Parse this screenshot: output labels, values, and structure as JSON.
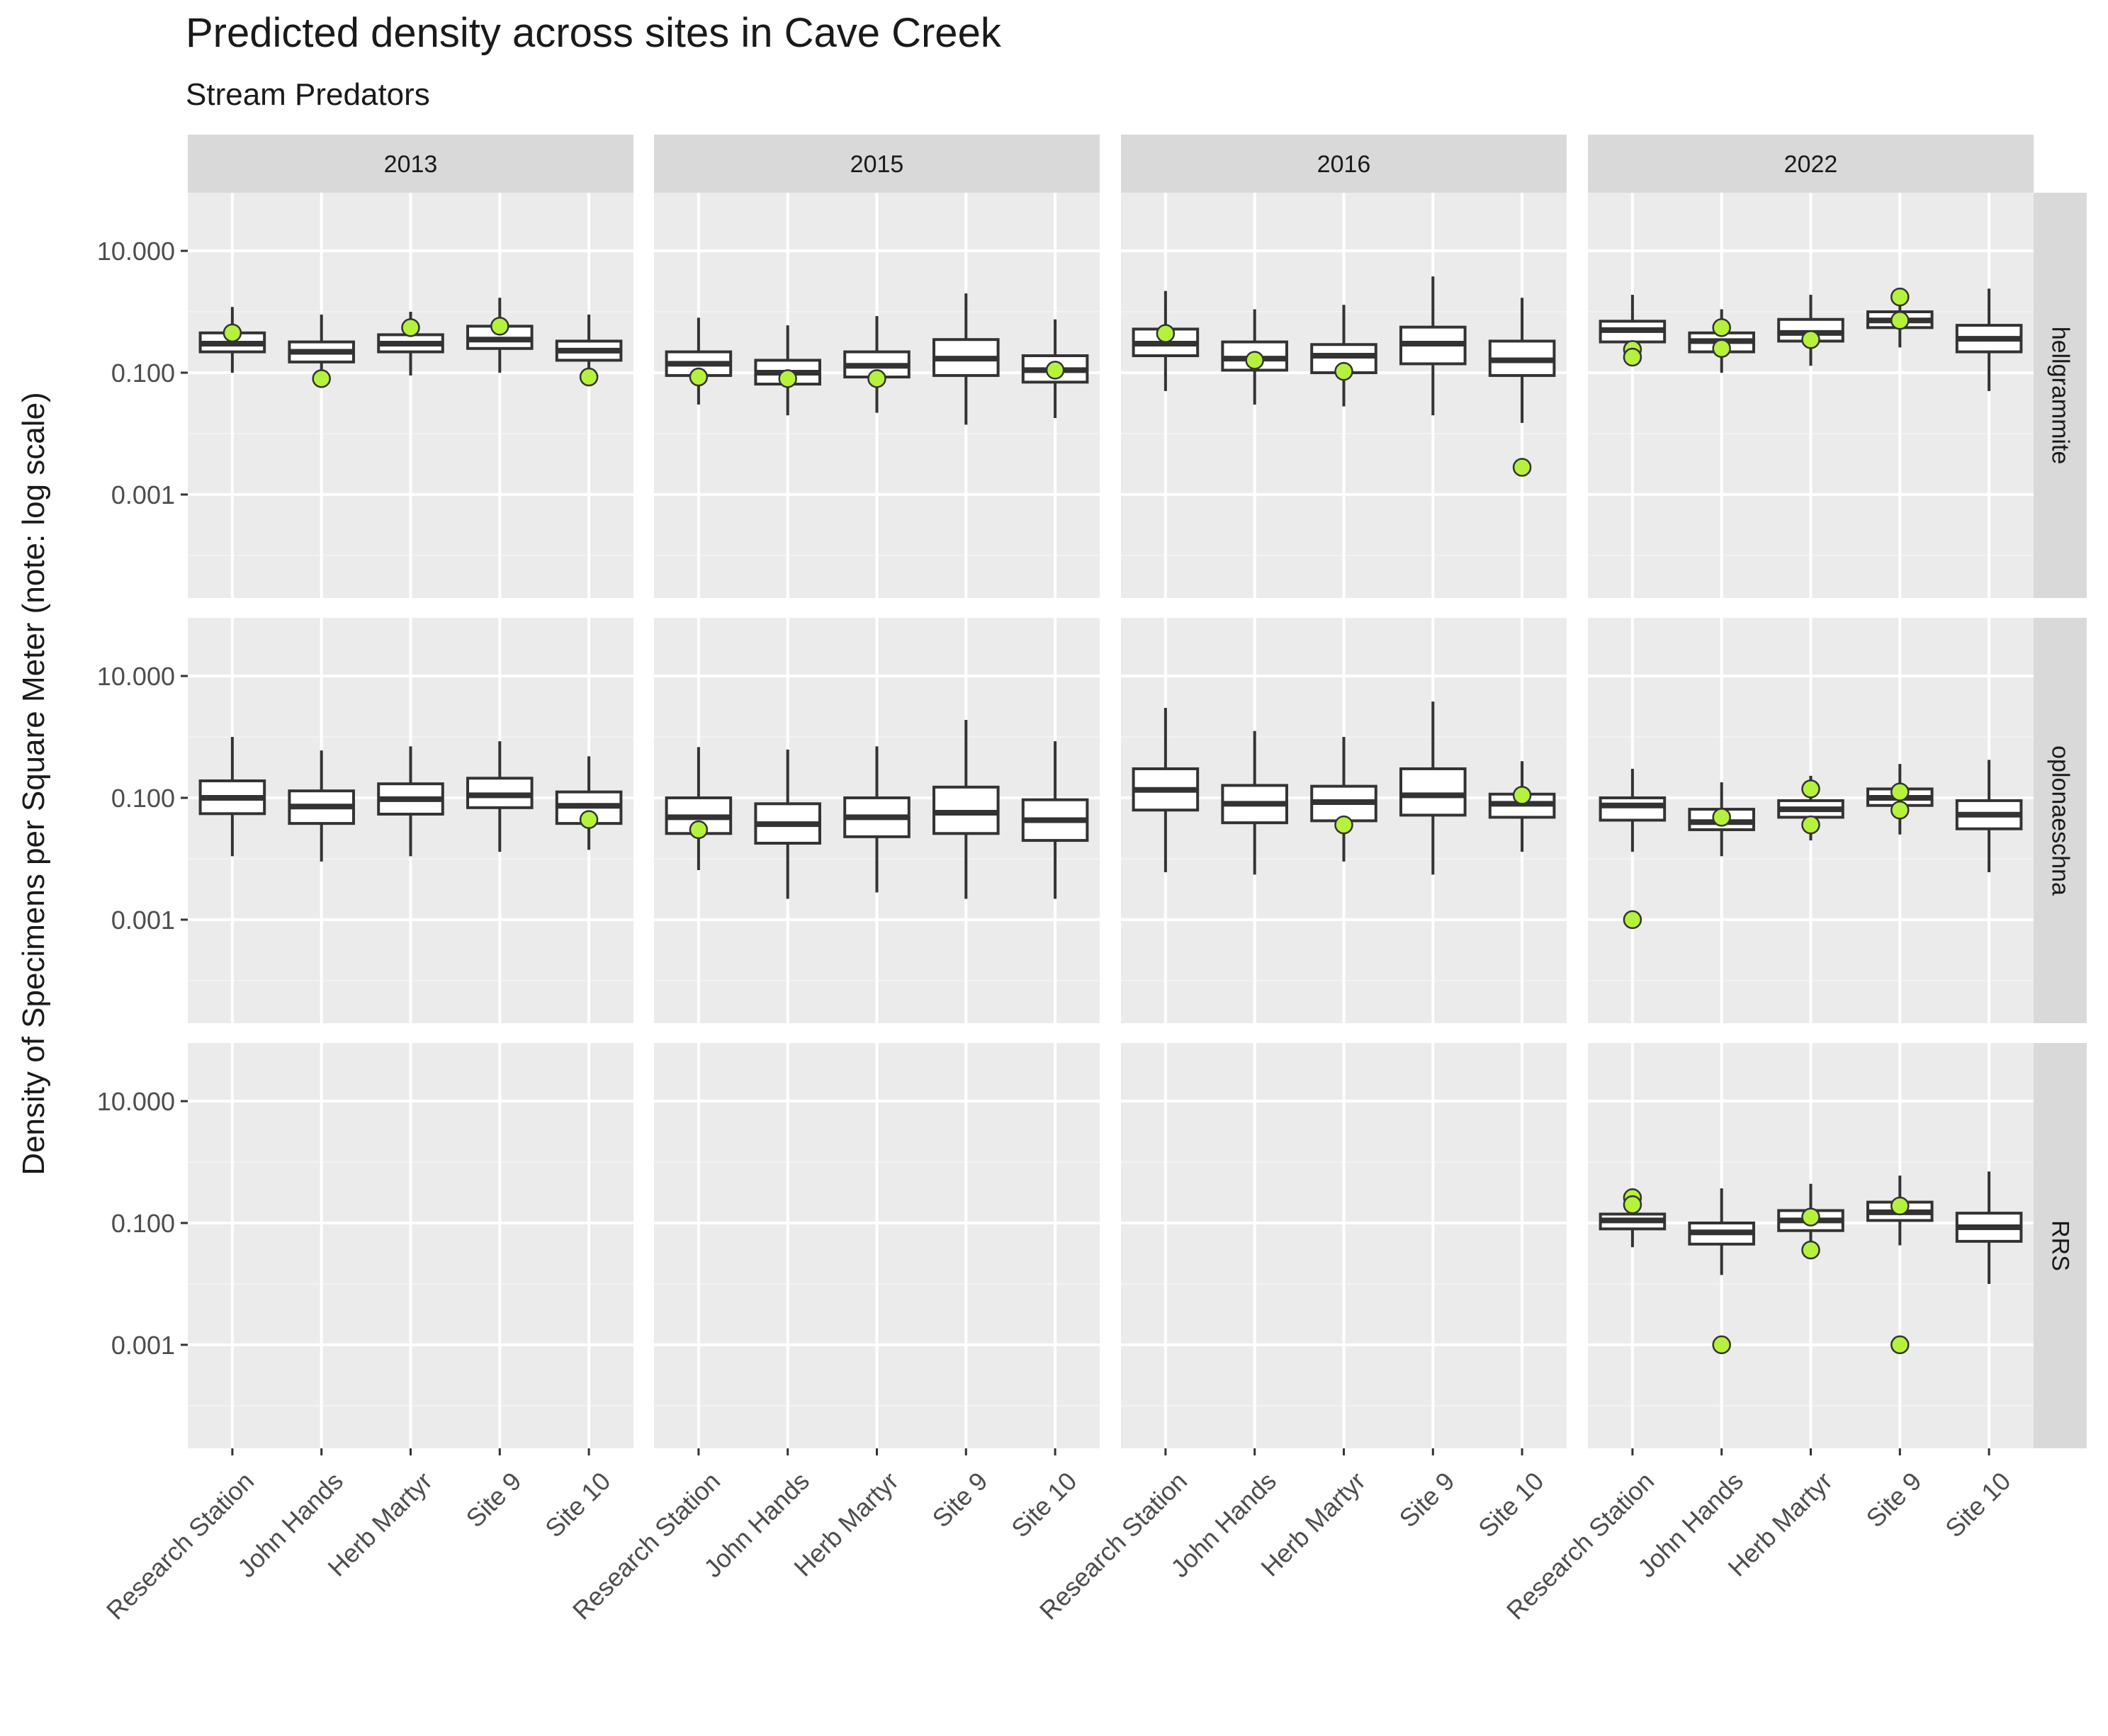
{
  "colors": {
    "panel_bg": "#ebebeb",
    "grid_major": "#ffffff",
    "grid_minor": "#f2f2f2",
    "strip_bg": "#d9d9d9",
    "box_fill": "#ffffff",
    "box_stroke": "#333333",
    "point_fill": "#b5f23c",
    "point_stroke": "#333333"
  },
  "chart_data": {
    "type": "boxplot",
    "title": "Predicted density across sites in Cave Creek",
    "subtitle": "Stream Predators",
    "ylabel": "Density of Specimens per Square Meter (note: log scale)",
    "xlabel": "",
    "y_scale": "log10",
    "ylim": [
      2e-05,
      90
    ],
    "y_ticks": [
      {
        "value": 10,
        "label": "10.000"
      },
      {
        "value": 0.1,
        "label": "0.100"
      },
      {
        "value": 0.001,
        "label": "0.001"
      }
    ],
    "y_minor_ticks": [
      100,
      1,
      0.01,
      0.0001
    ],
    "grid": true,
    "columns": [
      "2013",
      "2015",
      "2016",
      "2022"
    ],
    "rows": [
      "hellgrammite",
      "oplonaeschna",
      "RRS"
    ],
    "categories": [
      "Research Station",
      "John Hands",
      "Herb Martyr",
      "Site 9",
      "Site 10"
    ],
    "panels": [
      {
        "row": "hellgrammite",
        "column": "2013",
        "boxes": [
          {
            "site": "Research Station",
            "low": 0.1,
            "q1": 0.22,
            "median": 0.3,
            "q3": 0.45,
            "high": 1.2
          },
          {
            "site": "John Hands",
            "low": 0.06,
            "q1": 0.15,
            "median": 0.22,
            "q3": 0.32,
            "high": 0.9
          },
          {
            "site": "Herb Martyr",
            "low": 0.09,
            "q1": 0.22,
            "median": 0.3,
            "q3": 0.42,
            "high": 1.0
          },
          {
            "site": "Site 9",
            "low": 0.1,
            "q1": 0.25,
            "median": 0.35,
            "q3": 0.58,
            "high": 1.7
          },
          {
            "site": "Site 10",
            "low": 0.06,
            "q1": 0.16,
            "median": 0.23,
            "q3": 0.33,
            "high": 0.9
          }
        ],
        "points": [
          {
            "site": "Research Station",
            "value": 0.45
          },
          {
            "site": "John Hands",
            "value": 0.08
          },
          {
            "site": "Herb Martyr",
            "value": 0.55
          },
          {
            "site": "Site 9",
            "value": 0.58
          },
          {
            "site": "Site 10",
            "value": 0.085
          }
        ]
      },
      {
        "row": "hellgrammite",
        "column": "2015",
        "boxes": [
          {
            "site": "Research Station",
            "low": 0.03,
            "q1": 0.09,
            "median": 0.14,
            "q3": 0.22,
            "high": 0.8
          },
          {
            "site": "John Hands",
            "low": 0.02,
            "q1": 0.065,
            "median": 0.1,
            "q3": 0.16,
            "high": 0.6
          },
          {
            "site": "Herb Martyr",
            "low": 0.022,
            "q1": 0.085,
            "median": 0.13,
            "q3": 0.22,
            "high": 0.85
          },
          {
            "site": "Site 9",
            "low": 0.014,
            "q1": 0.09,
            "median": 0.17,
            "q3": 0.35,
            "high": 2.0
          },
          {
            "site": "Site 10",
            "low": 0.018,
            "q1": 0.07,
            "median": 0.11,
            "q3": 0.19,
            "high": 0.75
          }
        ],
        "points": [
          {
            "site": "Research Station",
            "value": 0.085
          },
          {
            "site": "John Hands",
            "value": 0.08
          },
          {
            "site": "Herb Martyr",
            "value": 0.08
          },
          {
            "site": "Site 10",
            "value": 0.11
          }
        ]
      },
      {
        "row": "hellgrammite",
        "column": "2016",
        "boxes": [
          {
            "site": "Research Station",
            "low": 0.05,
            "q1": 0.19,
            "median": 0.3,
            "q3": 0.52,
            "high": 2.2
          },
          {
            "site": "John Hands",
            "low": 0.03,
            "q1": 0.11,
            "median": 0.17,
            "q3": 0.32,
            "high": 1.1
          },
          {
            "site": "Herb Martyr",
            "low": 0.028,
            "q1": 0.1,
            "median": 0.19,
            "q3": 0.29,
            "high": 1.3
          },
          {
            "site": "Site 9",
            "low": 0.02,
            "q1": 0.14,
            "median": 0.3,
            "q3": 0.56,
            "high": 3.8
          },
          {
            "site": "Site 10",
            "low": 0.015,
            "q1": 0.09,
            "median": 0.16,
            "q3": 0.33,
            "high": 1.7
          }
        ],
        "points": [
          {
            "site": "Research Station",
            "value": 0.44
          },
          {
            "site": "John Hands",
            "value": 0.16
          },
          {
            "site": "Herb Martyr",
            "value": 0.105
          },
          {
            "site": "Site 10",
            "value": 0.0028
          }
        ]
      },
      {
        "row": "hellgrammite",
        "column": "2022",
        "boxes": [
          {
            "site": "Research Station",
            "low": 0.24,
            "q1": 0.32,
            "median": 0.5,
            "q3": 0.7,
            "high": 1.9
          },
          {
            "site": "John Hands",
            "low": 0.1,
            "q1": 0.22,
            "median": 0.33,
            "q3": 0.45,
            "high": 1.1
          },
          {
            "site": "Herb Martyr",
            "low": 0.13,
            "q1": 0.33,
            "median": 0.45,
            "q3": 0.75,
            "high": 1.9
          },
          {
            "site": "Site 9",
            "low": 0.26,
            "q1": 0.55,
            "median": 0.72,
            "q3": 1.0,
            "high": 1.8
          },
          {
            "site": "Site 10",
            "low": 0.05,
            "q1": 0.22,
            "median": 0.36,
            "q3": 0.6,
            "high": 2.4
          }
        ],
        "points": [
          {
            "site": "Research Station",
            "value": 0.24
          },
          {
            "site": "Research Station",
            "value": 0.18
          },
          {
            "site": "John Hands",
            "value": 0.55
          },
          {
            "site": "John Hands",
            "value": 0.25
          },
          {
            "site": "Herb Martyr",
            "value": 0.35
          },
          {
            "site": "Site 9",
            "value": 1.75
          },
          {
            "site": "Site 9",
            "value": 0.72
          }
        ]
      },
      {
        "row": "oplonaeschna",
        "column": "2013",
        "boxes": [
          {
            "site": "Research Station",
            "low": 0.011,
            "q1": 0.055,
            "median": 0.1,
            "q3": 0.19,
            "high": 1.0
          },
          {
            "site": "John Hands",
            "low": 0.009,
            "q1": 0.038,
            "median": 0.072,
            "q3": 0.13,
            "high": 0.6
          },
          {
            "site": "Herb Martyr",
            "low": 0.011,
            "q1": 0.054,
            "median": 0.095,
            "q3": 0.17,
            "high": 0.7
          },
          {
            "site": "Site 9",
            "low": 0.013,
            "q1": 0.069,
            "median": 0.11,
            "q3": 0.21,
            "high": 0.85
          },
          {
            "site": "Site 10",
            "low": 0.014,
            "q1": 0.038,
            "median": 0.074,
            "q3": 0.125,
            "high": 0.48
          }
        ],
        "points": [
          {
            "site": "Site 10",
            "value": 0.044
          }
        ]
      },
      {
        "row": "oplonaeschna",
        "column": "2015",
        "boxes": [
          {
            "site": "Research Station",
            "low": 0.0065,
            "q1": 0.026,
            "median": 0.048,
            "q3": 0.1,
            "high": 0.68
          },
          {
            "site": "John Hands",
            "low": 0.0022,
            "q1": 0.018,
            "median": 0.037,
            "q3": 0.08,
            "high": 0.62
          },
          {
            "site": "Herb Martyr",
            "low": 0.0028,
            "q1": 0.023,
            "median": 0.048,
            "q3": 0.1,
            "high": 0.7
          },
          {
            "site": "Site 9",
            "low": 0.0022,
            "q1": 0.026,
            "median": 0.057,
            "q3": 0.15,
            "high": 1.9
          },
          {
            "site": "Site 10",
            "low": 0.0022,
            "q1": 0.02,
            "median": 0.043,
            "q3": 0.093,
            "high": 0.85
          }
        ],
        "points": [
          {
            "site": "Research Station",
            "value": 0.03
          }
        ]
      },
      {
        "row": "oplonaeschna",
        "column": "2016",
        "boxes": [
          {
            "site": "Research Station",
            "low": 0.006,
            "q1": 0.063,
            "median": 0.135,
            "q3": 0.3,
            "high": 3.0
          },
          {
            "site": "John Hands",
            "low": 0.0055,
            "q1": 0.039,
            "median": 0.08,
            "q3": 0.16,
            "high": 1.25
          },
          {
            "site": "Herb Martyr",
            "low": 0.009,
            "q1": 0.042,
            "median": 0.085,
            "q3": 0.155,
            "high": 1.0
          },
          {
            "site": "Site 9",
            "low": 0.0055,
            "q1": 0.052,
            "median": 0.11,
            "q3": 0.3,
            "high": 3.8
          },
          {
            "site": "Site 10",
            "low": 0.013,
            "q1": 0.048,
            "median": 0.08,
            "q3": 0.115,
            "high": 0.4
          }
        ],
        "points": [
          {
            "site": "Herb Martyr",
            "value": 0.036
          },
          {
            "site": "Site 10",
            "value": 0.11
          }
        ]
      },
      {
        "row": "oplonaeschna",
        "column": "2022",
        "boxes": [
          {
            "site": "Research Station",
            "low": 0.013,
            "q1": 0.043,
            "median": 0.075,
            "q3": 0.1,
            "high": 0.3
          },
          {
            "site": "John Hands",
            "low": 0.011,
            "q1": 0.03,
            "median": 0.04,
            "q3": 0.065,
            "high": 0.18
          },
          {
            "site": "Herb Martyr",
            "low": 0.02,
            "q1": 0.048,
            "median": 0.065,
            "q3": 0.09,
            "high": 0.23
          },
          {
            "site": "Site 9",
            "low": 0.025,
            "q1": 0.075,
            "median": 0.1,
            "q3": 0.14,
            "high": 0.36
          },
          {
            "site": "Site 10",
            "low": 0.006,
            "q1": 0.031,
            "median": 0.053,
            "q3": 0.09,
            "high": 0.42
          }
        ],
        "points": [
          {
            "site": "Research Station",
            "value": 0.001
          },
          {
            "site": "John Hands",
            "value": 0.048
          },
          {
            "site": "Herb Martyr",
            "value": 0.14
          },
          {
            "site": "Herb Martyr",
            "value": 0.036
          },
          {
            "site": "Site 9",
            "value": 0.125
          },
          {
            "site": "Site 9",
            "value": 0.063
          }
        ]
      },
      {
        "row": "RRS",
        "column": "2013",
        "boxes": [],
        "points": []
      },
      {
        "row": "RRS",
        "column": "2015",
        "boxes": [],
        "points": []
      },
      {
        "row": "RRS",
        "column": "2016",
        "boxes": [],
        "points": []
      },
      {
        "row": "RRS",
        "column": "2022",
        "boxes": [
          {
            "site": "Research Station",
            "low": 0.04,
            "q1": 0.08,
            "median": 0.11,
            "q3": 0.14,
            "high": 0.3
          },
          {
            "site": "John Hands",
            "low": 0.014,
            "q1": 0.045,
            "median": 0.07,
            "q3": 0.1,
            "high": 0.37
          },
          {
            "site": "Herb Martyr",
            "low": 0.045,
            "q1": 0.075,
            "median": 0.11,
            "q3": 0.16,
            "high": 0.44
          },
          {
            "site": "Site 9",
            "low": 0.043,
            "q1": 0.11,
            "median": 0.15,
            "q3": 0.22,
            "high": 0.6
          },
          {
            "site": "Site 10",
            "low": 0.01,
            "q1": 0.05,
            "median": 0.085,
            "q3": 0.145,
            "high": 0.7
          }
        ],
        "points": [
          {
            "site": "Research Station",
            "value": 0.26
          },
          {
            "site": "Research Station",
            "value": 0.2
          },
          {
            "site": "John Hands",
            "value": 0.001
          },
          {
            "site": "Herb Martyr",
            "value": 0.125
          },
          {
            "site": "Herb Martyr",
            "value": 0.036
          },
          {
            "site": "Site 9",
            "value": 0.19
          },
          {
            "site": "Site 9",
            "value": 0.001
          }
        ]
      }
    ]
  }
}
